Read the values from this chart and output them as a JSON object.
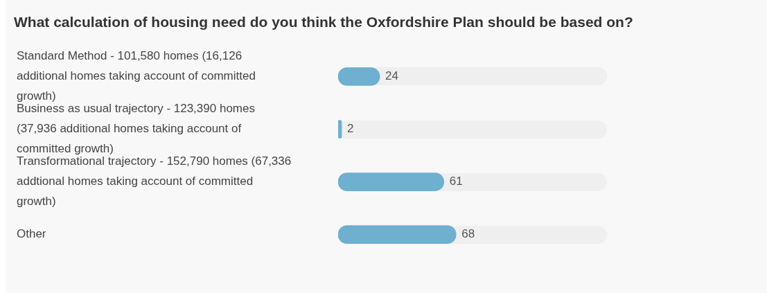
{
  "chart_data": {
    "type": "bar",
    "orientation": "horizontal",
    "title": "What calculation of housing need do you think the Oxfordshire Plan should be based on?",
    "categories": [
      "Standard Method - 101,580 homes (16,126 additional homes taking account of committed growth)",
      "Business as usual trajectory - 123,390 homes (37,936 additional homes taking account of committed growth)",
      "Transformational trajectory - 152,790 homes (67,336 addtional homes taking account of committed growth)",
      "Other"
    ],
    "values": [
      24,
      2,
      61,
      68
    ],
    "color": "#6fafd0",
    "grid": false,
    "legend": false,
    "tick_labels": "y",
    "data_labels": true
  }
}
